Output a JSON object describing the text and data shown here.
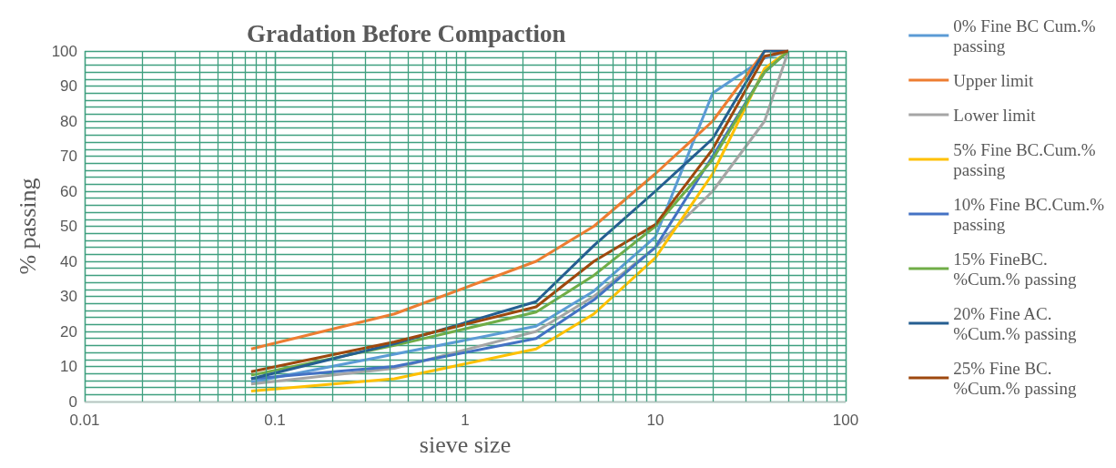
{
  "chart_data": {
    "type": "line",
    "title": "Gradation Before Compaction",
    "xlabel": "sieve size",
    "ylabel": "% passing",
    "log": "x",
    "x": [
      0.075,
      0.425,
      2.36,
      4.75,
      10,
      20,
      37.5,
      50
    ],
    "series": [
      {
        "name": "0% Fine BC Cum.% passing",
        "color": "#5b9bd5",
        "values": [
          5.5,
          13.5,
          21.5,
          31.5,
          47,
          88,
          98,
          100
        ]
      },
      {
        "name": "Upper limit",
        "color": "#ed7d31",
        "values": [
          15,
          25,
          40,
          50,
          65,
          80,
          100,
          100
        ]
      },
      {
        "name": "Lower limit",
        "color": "#a5a5a5",
        "values": [
          5,
          9.5,
          20,
          30,
          44,
          60,
          80,
          100
        ]
      },
      {
        "name": "5% Fine BC.Cum.% passing",
        "color": "#ffc000",
        "values": [
          3,
          6.5,
          15,
          25,
          41,
          65,
          95,
          100
        ]
      },
      {
        "name": "10% Fine BC.Cum.% passing",
        "color": "#4472c4",
        "values": [
          6.5,
          10,
          18,
          29,
          44,
          70,
          94,
          100
        ]
      },
      {
        "name": "15% FineBC. %Cum.% passing",
        "color": "#70ad47",
        "values": [
          7.5,
          16,
          25.5,
          36,
          50,
          69,
          94,
          100
        ]
      },
      {
        "name": "20% Fine AC. %Cum.% passing",
        "color": "#255e91",
        "values": [
          6.5,
          16.5,
          28.5,
          44.5,
          60,
          75,
          100,
          100
        ]
      },
      {
        "name": "25% Fine BC. %Cum.% passing",
        "color": "#9e480e",
        "values": [
          8.5,
          17,
          27,
          40,
          50.5,
          72,
          98.5,
          100
        ]
      }
    ],
    "xlim": [
      0.01,
      100
    ],
    "xticks": [
      0.01,
      0.1,
      1,
      10,
      100
    ],
    "ylim": [
      0,
      100
    ],
    "yticks": [
      0,
      {
        "value": 2,
        "label": null
      },
      {
        "value": 4,
        "label": null
      },
      {
        "value": 6,
        "label": null
      },
      {
        "value": 8,
        "label": null
      },
      10,
      {
        "value": 12,
        "label": null
      },
      {
        "value": 14,
        "label": null
      },
      {
        "value": 16,
        "label": null
      },
      {
        "value": 18,
        "label": null
      },
      20,
      {
        "value": 22,
        "label": null
      },
      {
        "value": 24,
        "label": null
      },
      {
        "value": 26,
        "label": null
      },
      {
        "value": 28,
        "label": null
      },
      30,
      {
        "value": 32,
        "label": null
      },
      {
        "value": 34,
        "label": null
      },
      {
        "value": 36,
        "label": null
      },
      {
        "value": 38,
        "label": null
      },
      40,
      {
        "value": 42,
        "label": null
      },
      {
        "value": 44,
        "label": null
      },
      {
        "value": 46,
        "label": null
      },
      {
        "value": 48,
        "label": null
      },
      50,
      {
        "value": 52,
        "label": null
      },
      {
        "value": 54,
        "label": null
      },
      {
        "value": 56,
        "label": null
      },
      {
        "value": 58,
        "label": null
      },
      60,
      {
        "value": 62,
        "label": null
      },
      {
        "value": 64,
        "label": null
      },
      {
        "value": 66,
        "label": null
      },
      {
        "value": 68,
        "label": null
      },
      70,
      {
        "value": 72,
        "label": null
      },
      {
        "value": 74,
        "label": null
      },
      {
        "value": 76,
        "label": null
      },
      {
        "value": 78,
        "label": null
      },
      80,
      {
        "value": 82,
        "label": null
      },
      {
        "value": 84,
        "label": null
      },
      {
        "value": 86,
        "label": null
      },
      {
        "value": 88,
        "label": null
      },
      90,
      {
        "value": 92,
        "label": null
      },
      {
        "value": 94,
        "label": null
      },
      {
        "value": 96,
        "label": null
      },
      {
        "value": 98,
        "label": null
      },
      100
    ],
    "grid": true,
    "legend": "right",
    "marker": "none",
    "line_style": "solid"
  }
}
